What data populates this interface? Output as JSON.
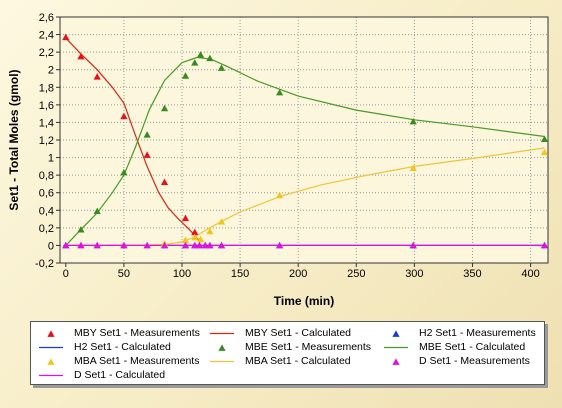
{
  "chart_data": {
    "type": "line",
    "title": "",
    "xlabel": "Time (min)",
    "ylabel": "Set1 - Total Moles (gmol)",
    "xlim": [
      -5,
      415
    ],
    "ylim": [
      -0.2,
      2.6
    ],
    "xticks": [
      0,
      50,
      100,
      150,
      200,
      250,
      300,
      350,
      400
    ],
    "yticks": [
      -0.2,
      0,
      0.2,
      0.4,
      0.6,
      0.8,
      1,
      1.2,
      1.4,
      1.6,
      1.8,
      2,
      2.2,
      2.4,
      2.6
    ],
    "ytick_labels": [
      "-0,2",
      "0",
      "0,2",
      "0,4",
      "0,6",
      "0,8",
      "1",
      "1,2",
      "1,4",
      "1,6",
      "1,8",
      "2",
      "2,2",
      "2,4",
      "2,6"
    ],
    "grid": true,
    "legend_position": "bottom",
    "series": [
      {
        "name": "MBY Set1 - Measurements",
        "kind": "markers",
        "color": "#e8101a",
        "x": [
          0,
          13,
          27,
          50,
          70,
          85,
          103,
          111
        ],
        "y": [
          2.37,
          2.15,
          1.92,
          1.47,
          1.03,
          0.72,
          0.31,
          0.15
        ]
      },
      {
        "name": "MBY Set1 - Calculated",
        "kind": "line",
        "color": "#d42a1a",
        "x": [
          0,
          13,
          27,
          40,
          50,
          60,
          70,
          80,
          88,
          97,
          105,
          110,
          113,
          116
        ],
        "y": [
          2.36,
          2.18,
          2.0,
          1.8,
          1.62,
          1.25,
          0.9,
          0.6,
          0.43,
          0.3,
          0.2,
          0.13,
          0.08,
          0.04
        ]
      },
      {
        "name": "H2 Set1 - Measurements",
        "kind": "markers",
        "color": "#1a3ad8",
        "x": [
          0,
          13,
          27,
          50,
          70,
          85,
          103,
          111,
          115,
          120,
          124,
          134,
          184,
          299,
          412
        ],
        "y": [
          0,
          0,
          0,
          0,
          0,
          0,
          0,
          0,
          0,
          0,
          0,
          0,
          0,
          0,
          0
        ]
      },
      {
        "name": "H2 Set1 - Calculated",
        "kind": "line",
        "color": "#1a3ad8",
        "x": [
          0,
          412
        ],
        "y": [
          0,
          0
        ]
      },
      {
        "name": "MBE Set1 - Measurements",
        "kind": "markers",
        "color": "#3a8a22",
        "x": [
          13,
          27,
          50,
          70,
          85,
          103,
          111,
          116,
          124,
          134,
          184,
          299,
          412
        ],
        "y": [
          0.18,
          0.39,
          0.83,
          1.26,
          1.56,
          1.93,
          2.08,
          2.17,
          2.13,
          2.02,
          1.74,
          1.41,
          1.21
        ]
      },
      {
        "name": "MBE Set1 - Calculated",
        "kind": "line",
        "color": "#4a9a2a",
        "x": [
          0,
          13,
          27,
          40,
          50,
          60,
          72,
          85,
          100,
          113,
          125,
          140,
          165,
          200,
          250,
          300,
          350,
          412
        ],
        "y": [
          0,
          0.18,
          0.37,
          0.6,
          0.8,
          1.12,
          1.55,
          1.88,
          2.08,
          2.14,
          2.12,
          2.03,
          1.87,
          1.7,
          1.54,
          1.43,
          1.35,
          1.24
        ]
      },
      {
        "name": "MBA Set1 - Measurements",
        "kind": "markers",
        "color": "#f2c51a",
        "x": [
          13,
          27,
          50,
          70,
          85,
          103,
          111,
          116,
          124,
          134,
          184,
          299,
          412
        ],
        "y": [
          0,
          0,
          0,
          0,
          0.02,
          0.06,
          0.09,
          0.07,
          0.16,
          0.27,
          0.57,
          0.88,
          1.06
        ]
      },
      {
        "name": "MBA Set1 - Calculated",
        "kind": "line",
        "color": "#efc43c",
        "x": [
          0,
          50,
          85,
          100,
          110,
          120,
          135,
          150,
          185,
          220,
          260,
          300,
          350,
          412
        ],
        "y": [
          0,
          0,
          0.01,
          0.04,
          0.09,
          0.17,
          0.28,
          0.38,
          0.56,
          0.69,
          0.8,
          0.9,
          0.99,
          1.11
        ]
      },
      {
        "name": "D Set1 - Measurements",
        "kind": "markers",
        "color": "#e010e0",
        "x": [
          0,
          13,
          27,
          50,
          70,
          85,
          103,
          111,
          115,
          120,
          124,
          134,
          184,
          299,
          412
        ],
        "y": [
          0,
          0,
          0,
          0,
          0,
          0,
          0,
          0,
          0,
          0,
          0,
          0,
          0,
          0,
          0
        ]
      },
      {
        "name": "D Set1 - Calculated",
        "kind": "line",
        "color": "#e010e0",
        "x": [
          0,
          412
        ],
        "y": [
          0,
          0
        ]
      }
    ]
  }
}
